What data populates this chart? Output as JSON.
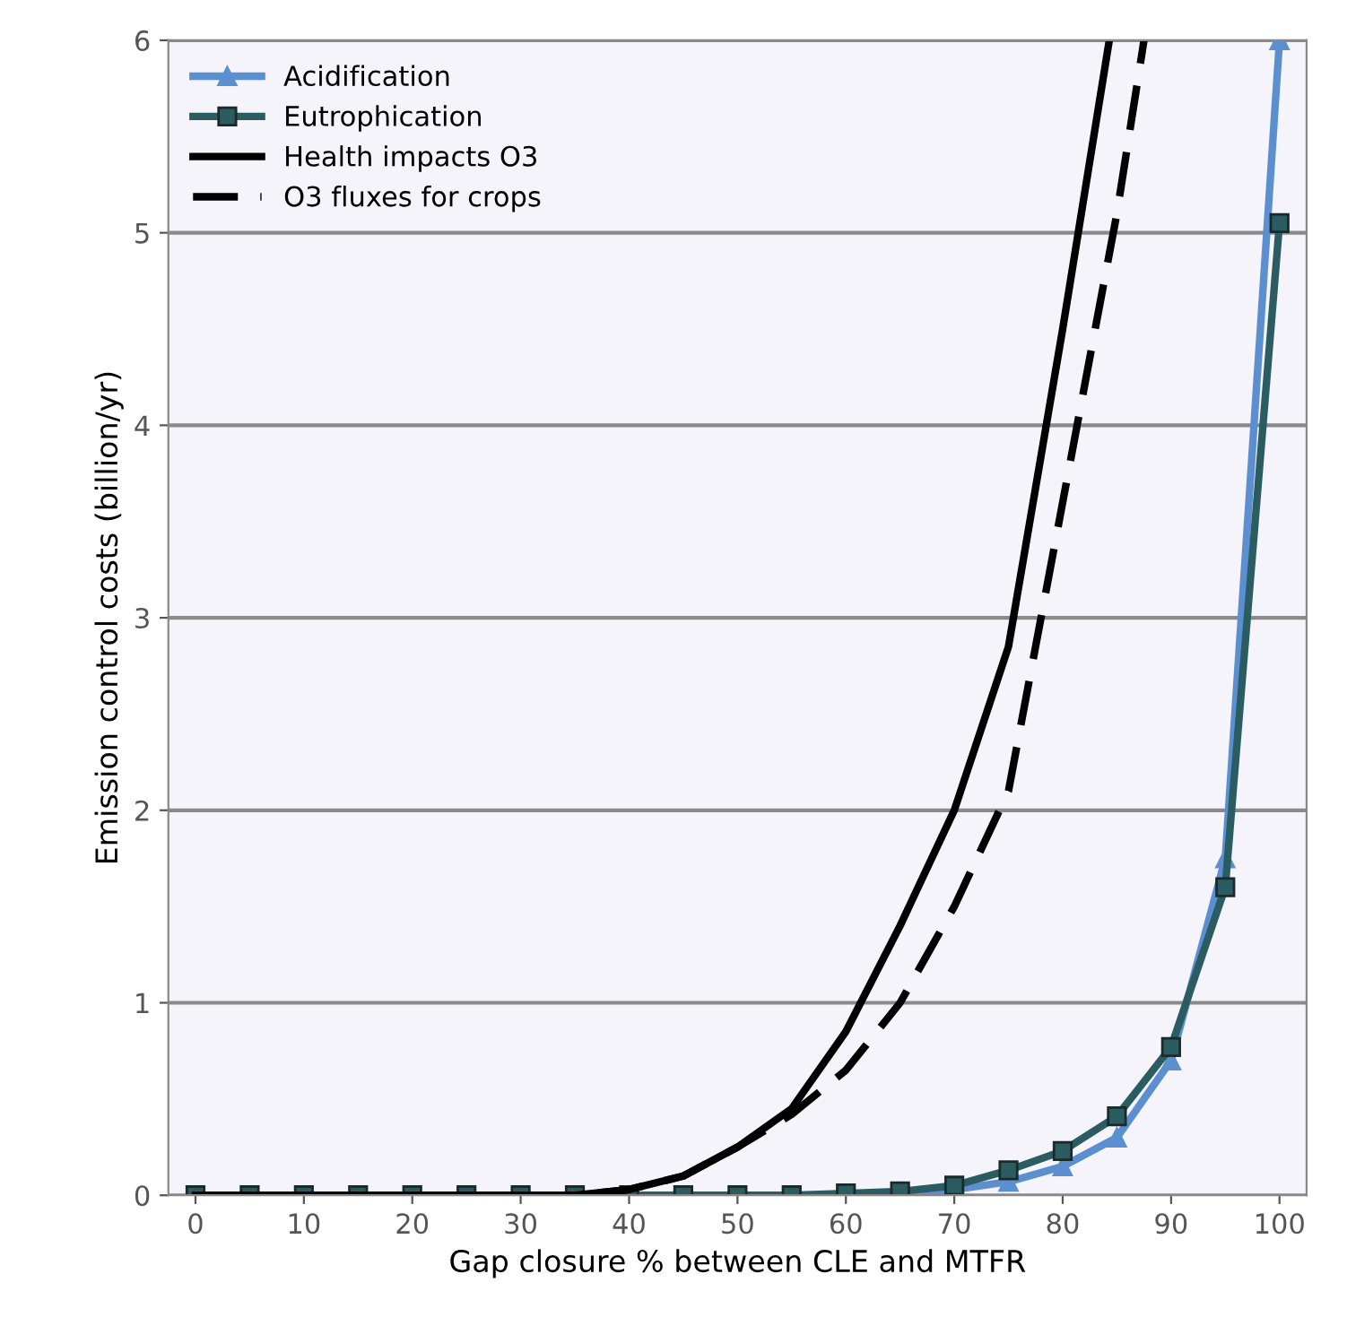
{
  "chart_data": {
    "type": "line",
    "xlabel": "Gap closure % between CLE and MTFR",
    "ylabel": "Emission control costs (billion/yr)",
    "xlim": [
      -2.5,
      102.5
    ],
    "xticks": [
      0,
      10,
      20,
      30,
      40,
      50,
      60,
      70,
      80,
      90,
      100
    ],
    "ylim": [
      0,
      6
    ],
    "yticks": [
      0,
      1,
      2,
      3,
      4,
      5,
      6
    ],
    "grid": "y",
    "legend": "top left",
    "series": [
      {
        "name": "Acidification",
        "color": "#5b8fd0",
        "marker": "triangle",
        "line_style": "solid",
        "x": [
          65,
          70,
          75,
          80,
          85,
          90,
          95,
          100
        ],
        "values": [
          0,
          0.03,
          0.07,
          0.15,
          0.3,
          0.7,
          1.75,
          6
        ]
      },
      {
        "name": "Eutrophication",
        "color": "#2b5c62",
        "marker": "square",
        "line_style": "solid",
        "x": [
          0,
          5,
          10,
          15,
          20,
          25,
          30,
          35,
          40,
          45,
          50,
          55,
          60,
          65,
          70,
          75,
          80,
          85,
          90,
          95,
          100
        ],
        "values": [
          0,
          0,
          0,
          0,
          0,
          0,
          0,
          0,
          0,
          0,
          0,
          0,
          0.01,
          0.02,
          0.05,
          0.13,
          0.23,
          0.41,
          0.77,
          1.6,
          5.05
        ]
      },
      {
        "name": "Health impacts O3",
        "color": "#000000",
        "marker": "none",
        "line_style": "solid",
        "x": [
          0,
          5,
          10,
          15,
          20,
          25,
          30,
          35,
          40,
          45,
          50,
          55,
          60,
          65,
          70,
          75,
          80,
          84.3
        ],
        "values": [
          0,
          0,
          0,
          0,
          0,
          0,
          0,
          0,
          0.03,
          0.1,
          0.25,
          0.45,
          0.85,
          1.4,
          2.0,
          2.85,
          4.5,
          6
        ]
      },
      {
        "name": "O3 fluxes for crops",
        "color": "#000000",
        "marker": "none",
        "line_style": "dashed",
        "x": [
          0,
          5,
          10,
          15,
          20,
          25,
          30,
          35,
          40,
          45,
          50,
          55,
          60,
          65,
          70,
          75,
          80,
          85,
          87.5
        ],
        "values": [
          0,
          0,
          0,
          0,
          0,
          0,
          0,
          0,
          0.03,
          0.1,
          0.25,
          0.42,
          0.65,
          1.0,
          1.5,
          2.1,
          3.6,
          5.1,
          6
        ]
      }
    ]
  }
}
